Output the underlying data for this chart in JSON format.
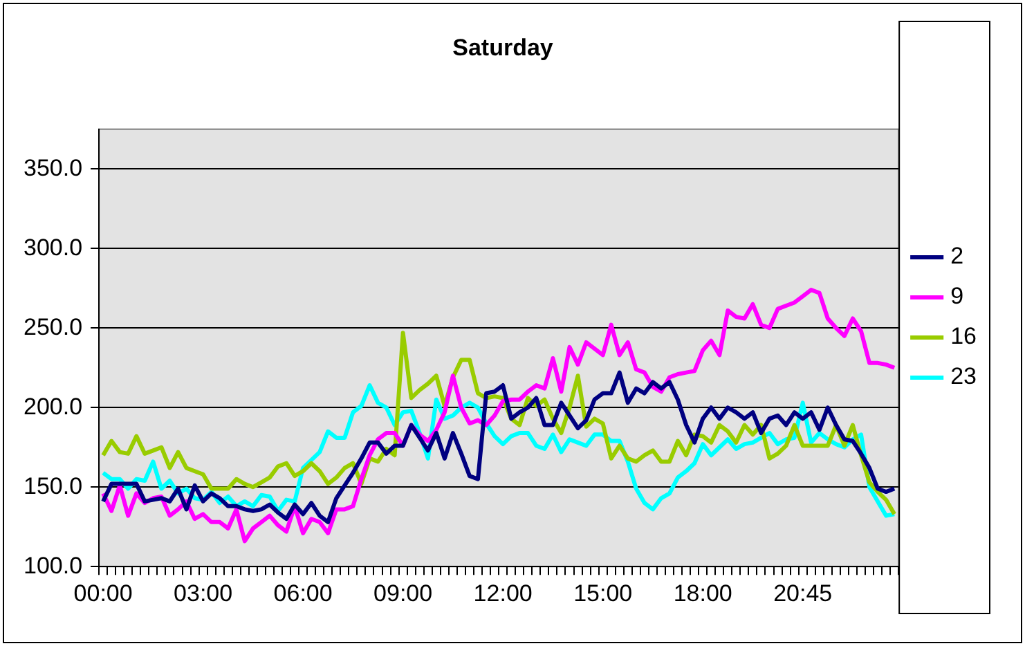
{
  "chart_data": {
    "type": "line",
    "title": "Saturday",
    "categories": [
      "00:00",
      null,
      null,
      null,
      null,
      null,
      null,
      null,
      null,
      null,
      null,
      null,
      "03:00",
      null,
      null,
      null,
      null,
      null,
      null,
      null,
      null,
      null,
      null,
      null,
      "06:00",
      null,
      null,
      null,
      null,
      null,
      null,
      null,
      null,
      null,
      null,
      null,
      "09:00",
      null,
      null,
      null,
      null,
      null,
      null,
      null,
      null,
      null,
      null,
      null,
      "12:00",
      null,
      null,
      null,
      null,
      null,
      null,
      null,
      null,
      null,
      null,
      null,
      "15:00",
      null,
      null,
      null,
      null,
      null,
      null,
      null,
      null,
      null,
      null,
      null,
      "18:00",
      null,
      null,
      null,
      null,
      null,
      null,
      null,
      null,
      null,
      null,
      null,
      "20:45",
      null,
      null,
      null,
      null,
      null,
      null,
      null,
      null,
      null,
      null,
      null
    ],
    "series": [
      {
        "name": "2",
        "color": "#000080",
        "values": [
          141,
          152,
          152,
          152,
          152,
          141,
          142,
          143,
          141,
          149,
          136,
          151,
          141,
          146,
          143,
          138,
          138,
          136,
          135,
          136,
          139,
          134,
          130,
          139,
          133,
          140,
          132,
          128,
          143,
          151,
          159,
          168,
          178,
          178,
          171,
          176,
          176,
          189,
          181,
          173,
          184,
          168,
          184,
          171,
          157,
          155,
          209,
          210,
          214,
          193,
          197,
          200,
          206,
          189,
          189,
          203,
          195,
          187,
          192,
          205,
          209,
          209,
          222,
          203,
          212,
          209,
          216,
          212,
          216,
          205,
          189,
          178,
          193,
          200,
          193,
          200,
          197,
          193,
          197,
          184,
          193,
          195,
          189,
          197,
          193,
          197,
          186,
          200,
          189,
          180,
          179,
          171,
          162,
          149,
          147,
          149
        ]
      },
      {
        "name": "9",
        "color": "#ff00ff",
        "values": [
          146,
          135,
          151,
          132,
          146,
          140,
          143,
          144,
          132,
          136,
          141,
          130,
          133,
          128,
          128,
          124,
          136,
          116,
          124,
          128,
          132,
          126,
          122,
          138,
          121,
          130,
          128,
          121,
          136,
          136,
          138,
          155,
          170,
          180,
          184,
          184,
          176,
          189,
          183,
          179,
          186,
          197,
          220,
          200,
          190,
          192,
          189,
          195,
          204,
          205,
          205,
          210,
          214,
          212,
          231,
          210,
          238,
          227,
          241,
          237,
          233,
          252,
          233,
          241,
          224,
          222,
          213,
          210,
          219,
          221,
          222,
          223,
          236,
          242,
          233,
          261,
          257,
          256,
          265,
          252,
          250,
          262,
          264,
          266,
          270,
          274,
          272,
          256,
          250,
          245,
          256,
          248,
          228,
          228,
          227,
          225
        ]
      },
      {
        "name": "16",
        "color": "#99cc00",
        "values": [
          170,
          179,
          172,
          171,
          182,
          171,
          173,
          175,
          162,
          172,
          162,
          160,
          158,
          149,
          149,
          149,
          155,
          152,
          150,
          153,
          156,
          163,
          165,
          157,
          160,
          165,
          160,
          152,
          156,
          162,
          165,
          152,
          168,
          166,
          174,
          170,
          247,
          206,
          211,
          215,
          220,
          201,
          219,
          230,
          230,
          209,
          206,
          207,
          206,
          193,
          189,
          206,
          201,
          205,
          193,
          184,
          200,
          220,
          188,
          193,
          190,
          168,
          176,
          168,
          166,
          170,
          173,
          166,
          166,
          179,
          170,
          183,
          182,
          178,
          189,
          185,
          178,
          189,
          183,
          189,
          168,
          171,
          176,
          189,
          176,
          176,
          176,
          176,
          189,
          176,
          189,
          170,
          153,
          147,
          142,
          133
        ]
      },
      {
        "name": "23",
        "color": "#00ffff",
        "values": [
          159,
          155,
          155,
          149,
          155,
          154,
          166,
          149,
          154,
          146,
          149,
          143,
          142,
          147,
          140,
          144,
          138,
          141,
          138,
          145,
          144,
          135,
          142,
          141,
          162,
          167,
          172,
          185,
          181,
          181,
          197,
          201,
          214,
          203,
          200,
          189,
          197,
          198,
          184,
          168,
          205,
          193,
          195,
          200,
          203,
          200,
          190,
          182,
          177,
          182,
          184,
          184,
          176,
          174,
          183,
          172,
          180,
          178,
          176,
          183,
          183,
          179,
          179,
          166,
          149,
          140,
          136,
          143,
          146,
          156,
          160,
          165,
          177,
          170,
          175,
          180,
          174,
          177,
          178,
          181,
          184,
          177,
          180,
          181,
          203,
          178,
          184,
          180,
          177,
          175,
          180,
          183,
          150,
          141,
          132,
          133
        ]
      }
    ],
    "ylim": [
      100,
      375
    ],
    "yticks": [
      {
        "value": 100,
        "label": "100.0"
      },
      {
        "value": 150,
        "label": "150.0"
      },
      {
        "value": 200,
        "label": "200.0"
      },
      {
        "value": 250,
        "label": "250.0"
      },
      {
        "value": 300,
        "label": "300.0"
      },
      {
        "value": 350,
        "label": "350.0"
      }
    ],
    "grid": "y",
    "legend": "right"
  }
}
